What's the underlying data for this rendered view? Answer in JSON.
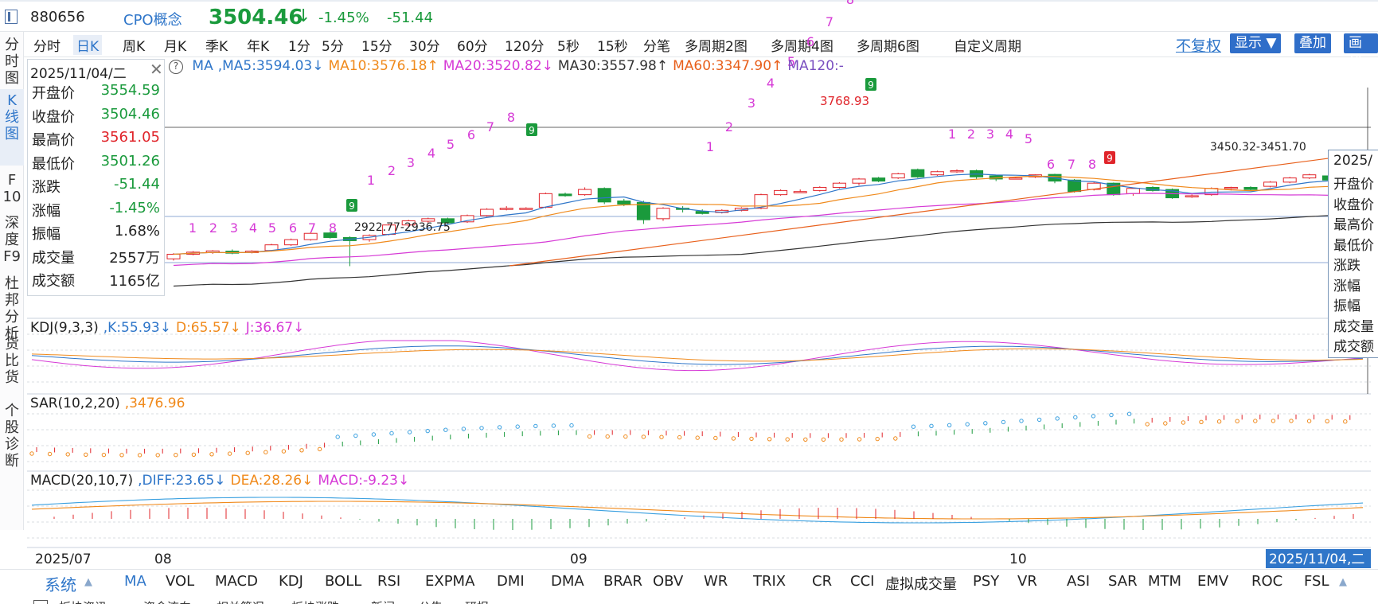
{
  "header": {
    "code": "880656",
    "name": "CPO概念",
    "price": "3504.46",
    "arrow": "↓",
    "change_pct": "-1.45%",
    "change": "-51.44"
  },
  "left_tabs": [
    {
      "label": "分\n时\n图"
    },
    {
      "label": "K\n线\n图"
    },
    {
      "label": "F\n10"
    },
    {
      "label": "深\n度\nF9"
    },
    {
      "label": "杜\n邦\n分\n析"
    },
    {
      "label": "货\n比\n货"
    },
    {
      "label": "个\n股\n诊\n断"
    }
  ],
  "periods": [
    "分时",
    "日K",
    "周K",
    "月K",
    "季K",
    "年K",
    "1分",
    "5分",
    "15分",
    "30分",
    "60分",
    "120分",
    "5秒",
    "15秒",
    "分笔",
    "多周期2图",
    "多周期4图",
    "多周期6图",
    "自定义周期"
  ],
  "period_active": "日K",
  "toolbar": {
    "fuquan": "不复权",
    "display": "显示",
    "overlay": "叠加",
    "draw": "画线"
  },
  "ma_line": [
    {
      "text": "MA",
      "color": "#2f76c9"
    },
    {
      "text": ",MA5:3594.03↓",
      "color": "#2f76c9"
    },
    {
      "text": "MA10:3576.18↑",
      "color": "#f08a1c"
    },
    {
      "text": "MA20:3520.82↓",
      "color": "#d63ad6"
    },
    {
      "text": "MA30:3557.98↑",
      "color": "#333333"
    },
    {
      "text": "MA60:3347.90↑",
      "color": "#e8601c"
    },
    {
      "text": "MA120:-",
      "color": "#7a4fc0"
    }
  ],
  "info_box": {
    "date": "2025/11/04/二",
    "rows": [
      {
        "label": "开盘价",
        "value": "3554.59",
        "color": "#1a9a3c"
      },
      {
        "label": "收盘价",
        "value": "3504.46",
        "color": "#1a9a3c"
      },
      {
        "label": "最高价",
        "value": "3561.05",
        "color": "#e0242a"
      },
      {
        "label": "最低价",
        "value": "3501.26",
        "color": "#1a9a3c"
      },
      {
        "label": "涨跌",
        "value": "-51.44",
        "color": "#1a9a3c"
      },
      {
        "label": "涨幅",
        "value": "-1.45%",
        "color": "#1a9a3c"
      },
      {
        "label": "振幅",
        "value": "1.68%",
        "color": "#222222"
      },
      {
        "label": "成交量",
        "value": "2557万",
        "color": "#222222"
      },
      {
        "label": "成交额",
        "value": "1165亿",
        "color": "#222222"
      }
    ]
  },
  "info_box2": {
    "date": "2025/",
    "labels": [
      "开盘价",
      "收盘价",
      "最高价",
      "最低价",
      "涨跌",
      "涨幅",
      "振幅",
      "成交量",
      "成交额"
    ]
  },
  "annotations": {
    "low1": "2922.77-2936.75",
    "high": "3768.93",
    "range2": "3450.32-3451.70"
  },
  "kdj": {
    "title": "KDJ(9,3,3)",
    "k": ",K:55.93↓",
    "d": "D:65.57↓",
    "j": "J:36.67↓"
  },
  "sar": {
    "title": "SAR(10,2,20)",
    "value": ",3476.96"
  },
  "macd": {
    "title": "MACD(20,10,7)",
    "diff": ",DIFF:23.65↓",
    "dea": "DEA:28.26↓",
    "macd": "MACD:-9.23↓"
  },
  "xaxis": {
    "labels": [
      "2025/07",
      "08",
      "09",
      "10"
    ],
    "cursor": "2025/11/04,二"
  },
  "bottom": {
    "system": "系统",
    "indicators": [
      "MA",
      "VOL",
      "MACD",
      "KDJ",
      "BOLL",
      "RSI",
      "EXPMA",
      "DMI",
      "DMA",
      "BRAR",
      "OBV",
      "WR",
      "TRIX",
      "CR",
      "CCI",
      "虚拟成交量",
      "PSY",
      "VR",
      "ASI",
      "SAR",
      "MTM",
      "EMV",
      "ROC",
      "FSL"
    ],
    "active": "MA",
    "tabs": [
      "板块资讯",
      "资金流向",
      "相关简况",
      "板块涨跌",
      "新闻",
      "公告",
      "研报"
    ]
  },
  "colors": {
    "up": "#e0242a",
    "down": "#1a9a3c",
    "accent": "#2f76c9",
    "td": "#d63ad6"
  },
  "chart_data": {
    "type": "candlestick",
    "start_date": "2025/07",
    "candles": [
      [
        2958,
        2980,
        2950,
        2985
      ],
      [
        2980,
        2990,
        2975,
        2995
      ],
      [
        2988,
        2996,
        2982,
        3000
      ],
      [
        2995,
        2985,
        2980,
        3003
      ],
      [
        2988,
        2995,
        2984,
        2999
      ],
      [
        2998,
        3025,
        2993,
        3030
      ],
      [
        3025,
        3050,
        3020,
        3055
      ],
      [
        3050,
        3080,
        3045,
        3085
      ],
      [
        3082,
        3060,
        3055,
        3088
      ],
      [
        3060,
        3045,
        2923,
        3066
      ],
      [
        3050,
        3070,
        3040,
        3075
      ],
      [
        3075,
        3120,
        3070,
        3125
      ],
      [
        3120,
        3140,
        3110,
        3145
      ],
      [
        3138,
        3150,
        3130,
        3155
      ],
      [
        3150,
        3130,
        3125,
        3155
      ],
      [
        3135,
        3165,
        3130,
        3170
      ],
      [
        3165,
        3195,
        3160,
        3200
      ],
      [
        3195,
        3200,
        3190,
        3210
      ],
      [
        3200,
        3200,
        3195,
        3205
      ],
      [
        3205,
        3270,
        3200,
        3275
      ],
      [
        3268,
        3260,
        3255,
        3275
      ],
      [
        3265,
        3290,
        3260,
        3300
      ],
      [
        3295,
        3230,
        3220,
        3300
      ],
      [
        3235,
        3220,
        3210,
        3245
      ],
      [
        3228,
        3145,
        3125,
        3236
      ],
      [
        3150,
        3200,
        3140,
        3205
      ],
      [
        3200,
        3195,
        3180,
        3210
      ],
      [
        3185,
        3175,
        3170,
        3195
      ],
      [
        3180,
        3190,
        3175,
        3195
      ],
      [
        3190,
        3200,
        3185,
        3205
      ],
      [
        3200,
        3265,
        3195,
        3270
      ],
      [
        3265,
        3285,
        3260,
        3290
      ],
      [
        3280,
        3280,
        3275,
        3290
      ],
      [
        3285,
        3300,
        3280,
        3305
      ],
      [
        3300,
        3320,
        3295,
        3325
      ],
      [
        3320,
        3340,
        3310,
        3345
      ],
      [
        3345,
        3330,
        3325,
        3350
      ],
      [
        3345,
        3365,
        3340,
        3370
      ],
      [
        3385,
        3350,
        3345,
        3390
      ],
      [
        3360,
        3375,
        3355,
        3380
      ],
      [
        3378,
        3380,
        3370,
        3386
      ],
      [
        3380,
        3350,
        3340,
        3385
      ],
      [
        3355,
        3340,
        3330,
        3360
      ],
      [
        3345,
        3345,
        3338,
        3350
      ],
      [
        3350,
        3360,
        3345,
        3362
      ],
      [
        3362,
        3330,
        3320,
        3365
      ],
      [
        3335,
        3280,
        3275,
        3340
      ],
      [
        3290,
        3320,
        3285,
        3325
      ],
      [
        3320,
        3265,
        3260,
        3323
      ],
      [
        3270,
        3295,
        3260,
        3300
      ],
      [
        3300,
        3285,
        3280,
        3305
      ],
      [
        3290,
        3250,
        3245,
        3295
      ],
      [
        3255,
        3260,
        3250,
        3266
      ],
      [
        3265,
        3295,
        3260,
        3300
      ],
      [
        3295,
        3300,
        3285,
        3303
      ],
      [
        3300,
        3290,
        3285,
        3305
      ],
      [
        3305,
        3325,
        3300,
        3330
      ],
      [
        3325,
        3345,
        3320,
        3350
      ],
      [
        3345,
        3360,
        3340,
        3365
      ],
      [
        3355,
        3335,
        3330,
        3360
      ],
      [
        3335,
        3320,
        3315,
        3340
      ],
      [
        3325,
        3330,
        3320,
        3335
      ],
      [
        3330,
        3310,
        3305,
        3335
      ]
    ]
  }
}
